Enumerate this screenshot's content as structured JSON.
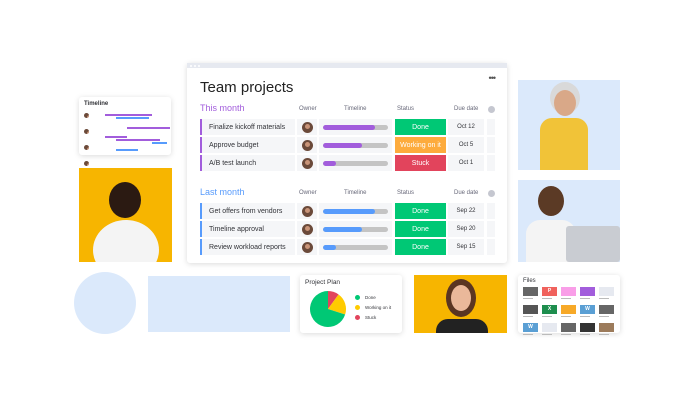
{
  "main": {
    "title": "Team projects",
    "more_icon": "ellipsis-icon",
    "columns": {
      "owner": "Owner",
      "timeline": "Timeline",
      "status": "Status",
      "due": "Due date"
    },
    "groups": [
      {
        "label": "This month",
        "color": "#a25ddc",
        "rows": [
          {
            "name": "Finalize kickoff materials",
            "progress": 80,
            "status": "Done",
            "status_color": "#00c875",
            "due": "Oct 12"
          },
          {
            "name": "Approve budget",
            "progress": 60,
            "status": "Working on it",
            "status_color": "#fdab3d",
            "due": "Oct 5"
          },
          {
            "name": "A/B test launch",
            "progress": 20,
            "status": "Stuck",
            "status_color": "#e2445c",
            "due": "Oct 1"
          }
        ]
      },
      {
        "label": "Last month",
        "color": "#579bfc",
        "rows": [
          {
            "name": "Get offers from vendors",
            "progress": 80,
            "status": "Done",
            "status_color": "#00c875",
            "due": "Sep 22"
          },
          {
            "name": "Timeline approval",
            "progress": 60,
            "status": "Done",
            "status_color": "#00c875",
            "due": "Sep 20"
          },
          {
            "name": "Review workload reports",
            "progress": 20,
            "status": "Done",
            "status_color": "#00c875",
            "due": "Sep 15"
          }
        ]
      }
    ]
  },
  "timeline_widget": {
    "title": "Timeline"
  },
  "project_plan": {
    "title": "Project Plan",
    "legend": [
      {
        "label": "Done",
        "color": "#00c875",
        "value": 70
      },
      {
        "label": "Working on it",
        "color": "#ffcb00",
        "value": 20
      },
      {
        "label": "Stuck",
        "color": "#e2445c",
        "value": 10
      }
    ]
  },
  "files": {
    "title": "Files",
    "tiles": [
      "#666",
      "#f0625d",
      "#f99ee8",
      "#a25ddc",
      "#e6e9f0",
      "#555",
      "#1e8e4e",
      "#f7a928",
      "#5a9fd4",
      "#666",
      "#5a9fd4",
      "#e6e9f0",
      "#666",
      "#333",
      "#9c7b5b"
    ],
    "tile_labels": [
      "",
      "P",
      "",
      "",
      "",
      "",
      "X",
      "",
      "W",
      "",
      "W",
      "",
      "",
      "",
      ""
    ]
  }
}
